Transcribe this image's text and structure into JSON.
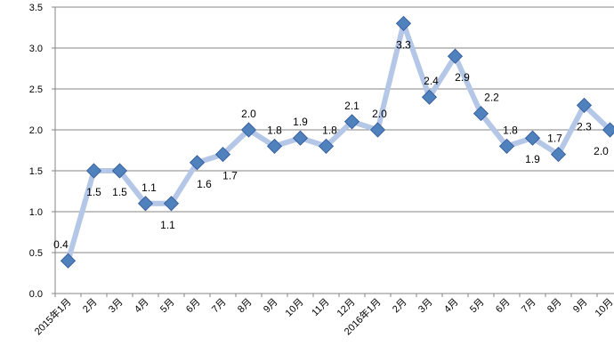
{
  "chart_data": {
    "type": "line",
    "categories": [
      "2015年1月",
      "2月",
      "3月",
      "4月",
      "5月",
      "6月",
      "7月",
      "8月",
      "9月",
      "10月",
      "11月",
      "12月",
      "2016年1月",
      "2月",
      "3月",
      "4月",
      "5月",
      "6月",
      "7月",
      "8月",
      "9月",
      "10月"
    ],
    "values": [
      0.4,
      1.5,
      1.5,
      1.1,
      1.1,
      1.6,
      1.7,
      2.0,
      1.8,
      1.9,
      1.8,
      2.1,
      2.0,
      3.3,
      2.4,
      2.9,
      2.2,
      1.8,
      1.9,
      1.7,
      2.3,
      2.0
    ],
    "data_labels": [
      "0.4",
      "1.5",
      "1.5",
      "1.1",
      "1.1",
      "1.6",
      "1.7",
      "2.0",
      "1.8",
      "1.9",
      "1.8",
      "2.1",
      "2.0",
      "3.3",
      "2.4",
      "2.9",
      "2.2",
      "1.8",
      "1.9",
      "1.7",
      "2.3",
      "2.0"
    ],
    "y_ticks": [
      "0.0",
      "0.5",
      "1.0",
      "1.5",
      "2.0",
      "2.5",
      "3.0",
      "3.5"
    ],
    "ylim": [
      0,
      3.5
    ],
    "grid": true,
    "line_color": "#b4c7e7",
    "marker_color": "#4f81bd",
    "marker": "diamond"
  }
}
